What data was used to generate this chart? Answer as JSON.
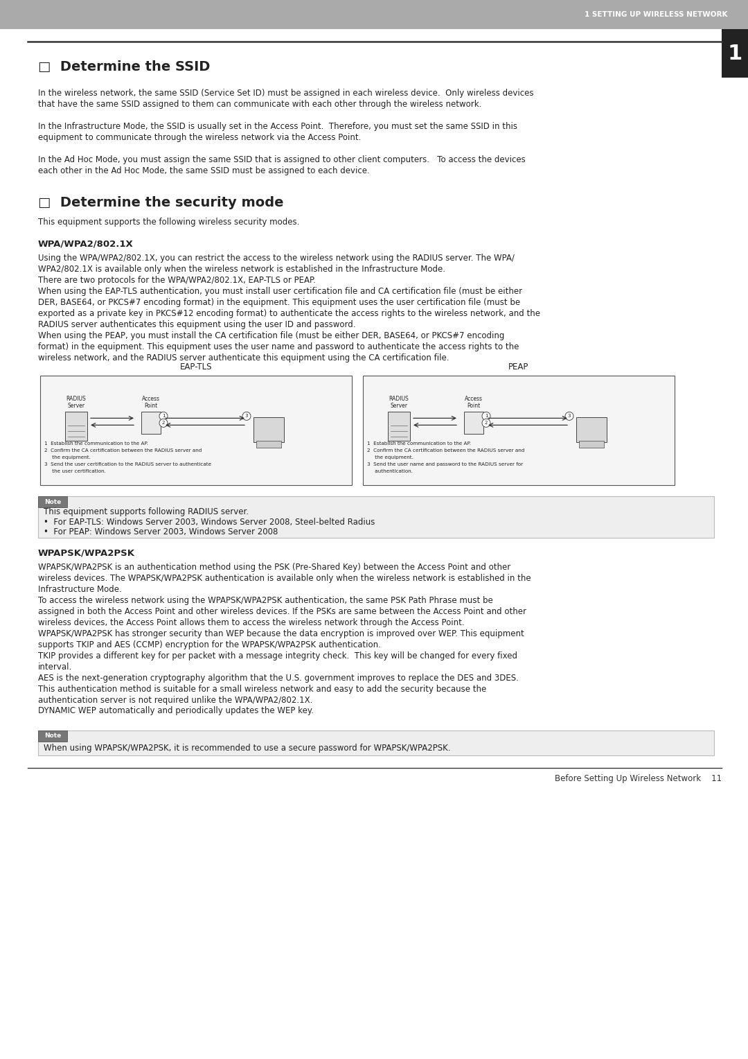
{
  "page_bg": "#ffffff",
  "header_bg": "#aaaaaa",
  "header_text": "1 SETTING UP WIRELESS NETWORK",
  "header_text_color": "#ffffff",
  "section_number_bg": "#222222",
  "section_number": "1",
  "section_number_color": "#ffffff",
  "title1": "□  Determine the SSID",
  "title2": "□  Determine the security mode",
  "body_text_color": "#222222",
  "body_font_size": 8.5,
  "title_font_size": 14,
  "sub_heading_font_size": 9.5,
  "footer_text": "Before Setting Up Wireless Network    11",
  "para1_line1": "In the wireless network, the same SSID (Service Set ID) must be assigned in each wireless device.  Only wireless devices",
  "para1_line2": "that have the same SSID assigned to them can communicate with each other through the wireless network.",
  "para2_line1": "In the Infrastructure Mode, the SSID is usually set in the Access Point.  Therefore, you must set the same SSID in this",
  "para2_line2": "equipment to communicate through the wireless network via the Access Point.",
  "para3_line1": "In the Ad Hoc Mode, you must assign the same SSID that is assigned to other client computers.   To access the devices",
  "para3_line2": "each other in the Ad Hoc Mode, the same SSID must be assigned to each device.",
  "sec_mode_intro": "This equipment supports the following wireless security modes.",
  "wpa_heading": "WPA/WPA2/802.1X",
  "wpa_para": "Using the WPA/WPA2/802.1X, you can restrict the access to the wireless network using the RADIUS server. The WPA/\nWPA2/802.1X is available only when the wireless network is established in the Infrastructure Mode.\nThere are two protocols for the WPA/WPA2/802.1X, EAP-TLS or PEAP.\nWhen using the EAP-TLS authentication, you must install user certification file and CA certification file (must be either\nDER, BASE64, or PKCS#7 encoding format) in the equipment. This equipment uses the user certification file (must be\nexported as a private key in PKCS#12 encoding format) to authenticate the access rights to the wireless network, and the\nRADIUS server authenticates this equipment using the user ID and password.\nWhen using the PEAP, you must install the CA certification file (must be either DER, BASE64, or PKCS#7 encoding\nformat) in the equipment. This equipment uses the user name and password to authenticate the access rights to the\nwireless network, and the RADIUS server authenticate this equipment using the CA certification file.",
  "eap_tls_label": "EAP-TLS",
  "peap_label": "PEAP",
  "diag_left_steps": [
    "1  Establish the communication to the AP.",
    "2  Confirm the CA certification between the RADIUS server and",
    "     the equipment.",
    "3  Send the user certification to the RADIUS server to authenticate",
    "     the user certification."
  ],
  "diag_right_steps": [
    "1  Establish the communication to the AP.",
    "2  Confirm the CA certification between the RADIUS server and",
    "     the equipment.",
    "3  Send the user name and password to the RADIUS server for",
    "     authentication."
  ],
  "note_text1": "This equipment supports following RADIUS server.",
  "note_bullet1": "•  For EAP-TLS: Windows Server 2003, Windows Server 2008, Steel-belted Radius",
  "note_bullet2": "•  For PEAP: Windows Server 2003, Windows Server 2008",
  "wpapsk_heading": "WPAPSK/WPA2PSK",
  "wpapsk_para": "WPAPSK/WPA2PSK is an authentication method using the PSK (Pre-Shared Key) between the Access Point and other\nwireless devices. The WPAPSK/WPA2PSK authentication is available only when the wireless network is established in the\nInfrastructure Mode.\nTo access the wireless network using the WPAPSK/WPA2PSK authentication, the same PSK Path Phrase must be\nassigned in both the Access Point and other wireless devices. If the PSKs are same between the Access Point and other\nwireless devices, the Access Point allows them to access the wireless network through the Access Point.\nWPAPSK/WPA2PSK has stronger security than WEP because the data encryption is improved over WEP. This equipment\nsupports TKIP and AES (CCMP) encryption for the WPAPSK/WPA2PSK authentication.\nTKIP provides a different key for per packet with a message integrity check.  This key will be changed for every fixed\ninterval.\nAES is the next-generation cryptography algorithm that the U.S. government improves to replace the DES and 3DES.\nThis authentication method is suitable for a small wireless network and easy to add the security because the\nauthentication server is not required unlike the WPA/WPA2/802.1X.\nDYNAMIC WEP automatically and periodically updates the WEP key.",
  "note2_text": "When using WPAPSK/WPA2PSK, it is recommended to use a secure password for WPAPSK/WPA2PSK."
}
